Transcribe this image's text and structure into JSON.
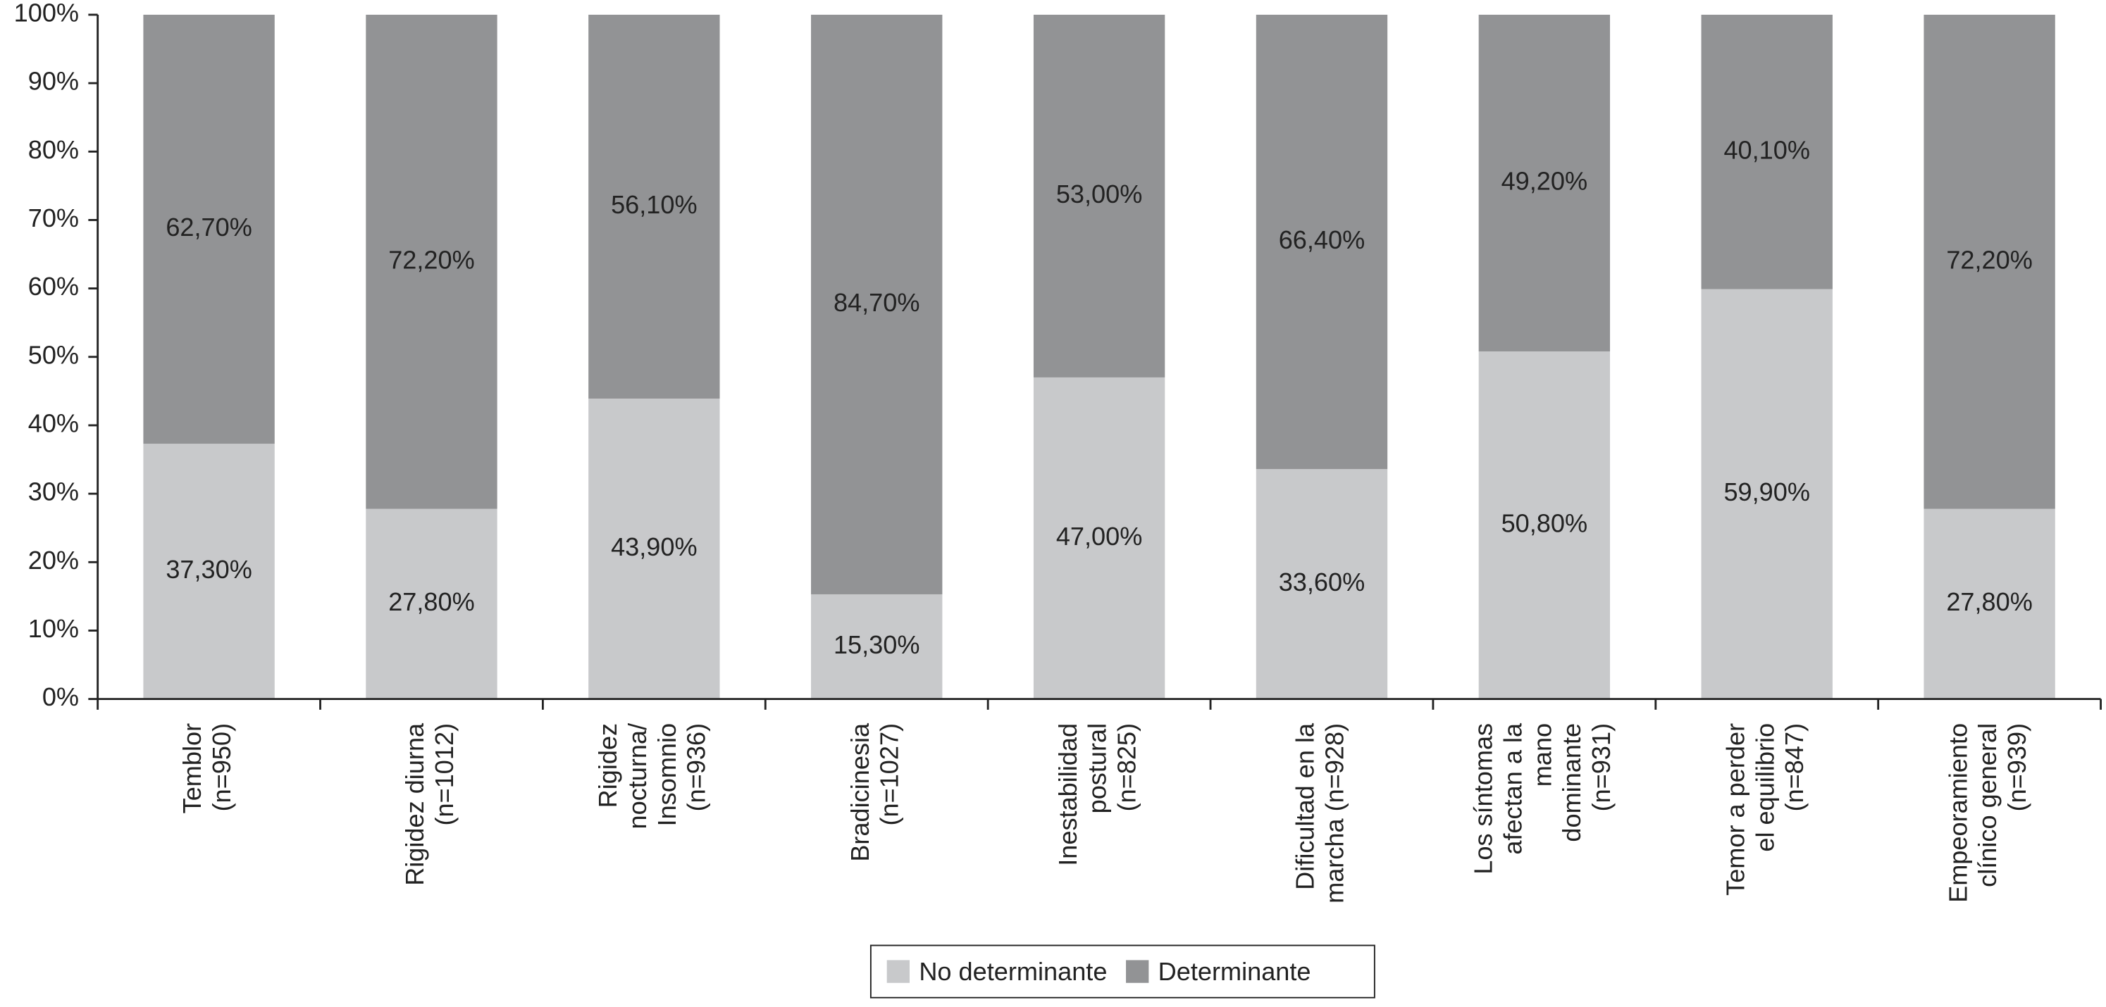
{
  "chart_data": {
    "type": "stacked-bar",
    "categories": [
      [
        "Temblor",
        "(n=950)"
      ],
      [
        "Rigidez diurna",
        "(n=1012)"
      ],
      [
        "Rigidez",
        "nocturna/",
        "Insomnio",
        "(n=936)"
      ],
      [
        "Bradicinesia",
        "(n=1027)"
      ],
      [
        "Inestabilidad",
        "postural",
        "(n=825)"
      ],
      [
        "Dificultad en la",
        "marcha (n=928)"
      ],
      [
        "Los síntomas",
        "afectan a la",
        "mano",
        "dominante",
        "(n=931)"
      ],
      [
        "Temor a perder",
        "el equilibrio",
        "(n=847)"
      ],
      [
        "Empeoramiento",
        "clínico general",
        "(n=939)"
      ]
    ],
    "series": [
      {
        "name": "No determinante",
        "color": "#c8c9cb",
        "values": [
          37.3,
          27.8,
          43.9,
          15.3,
          47.0,
          33.6,
          50.8,
          59.9,
          27.8
        ],
        "value_labels": [
          "37,30%",
          "27,80%",
          "43,90%",
          "15,30%",
          "47,00%",
          "33,60%",
          "50,80%",
          "59,90%",
          "27,80%"
        ]
      },
      {
        "name": "Determinante",
        "color": "#929395",
        "values": [
          62.7,
          72.2,
          56.1,
          84.7,
          53.0,
          66.4,
          49.2,
          40.1,
          72.2
        ],
        "value_labels": [
          "62,70%",
          "72,20%",
          "56,10%",
          "84,70%",
          "53,00%",
          "66,40%",
          "49,20%",
          "40,10%",
          "72,20%"
        ]
      }
    ],
    "ylim": [
      0,
      100
    ],
    "yticks": [
      {
        "value": 0,
        "label": "0%"
      },
      {
        "value": 10,
        "label": "10%"
      },
      {
        "value": 20,
        "label": "20%"
      },
      {
        "value": 30,
        "label": "30%"
      },
      {
        "value": 40,
        "label": "40%"
      },
      {
        "value": 50,
        "label": "50%"
      },
      {
        "value": 60,
        "label": "60%"
      },
      {
        "value": 70,
        "label": "70%"
      },
      {
        "value": 80,
        "label": "80%"
      },
      {
        "value": 90,
        "label": "90%"
      },
      {
        "value": 100,
        "label": "100%"
      }
    ],
    "legend": "bottom"
  }
}
